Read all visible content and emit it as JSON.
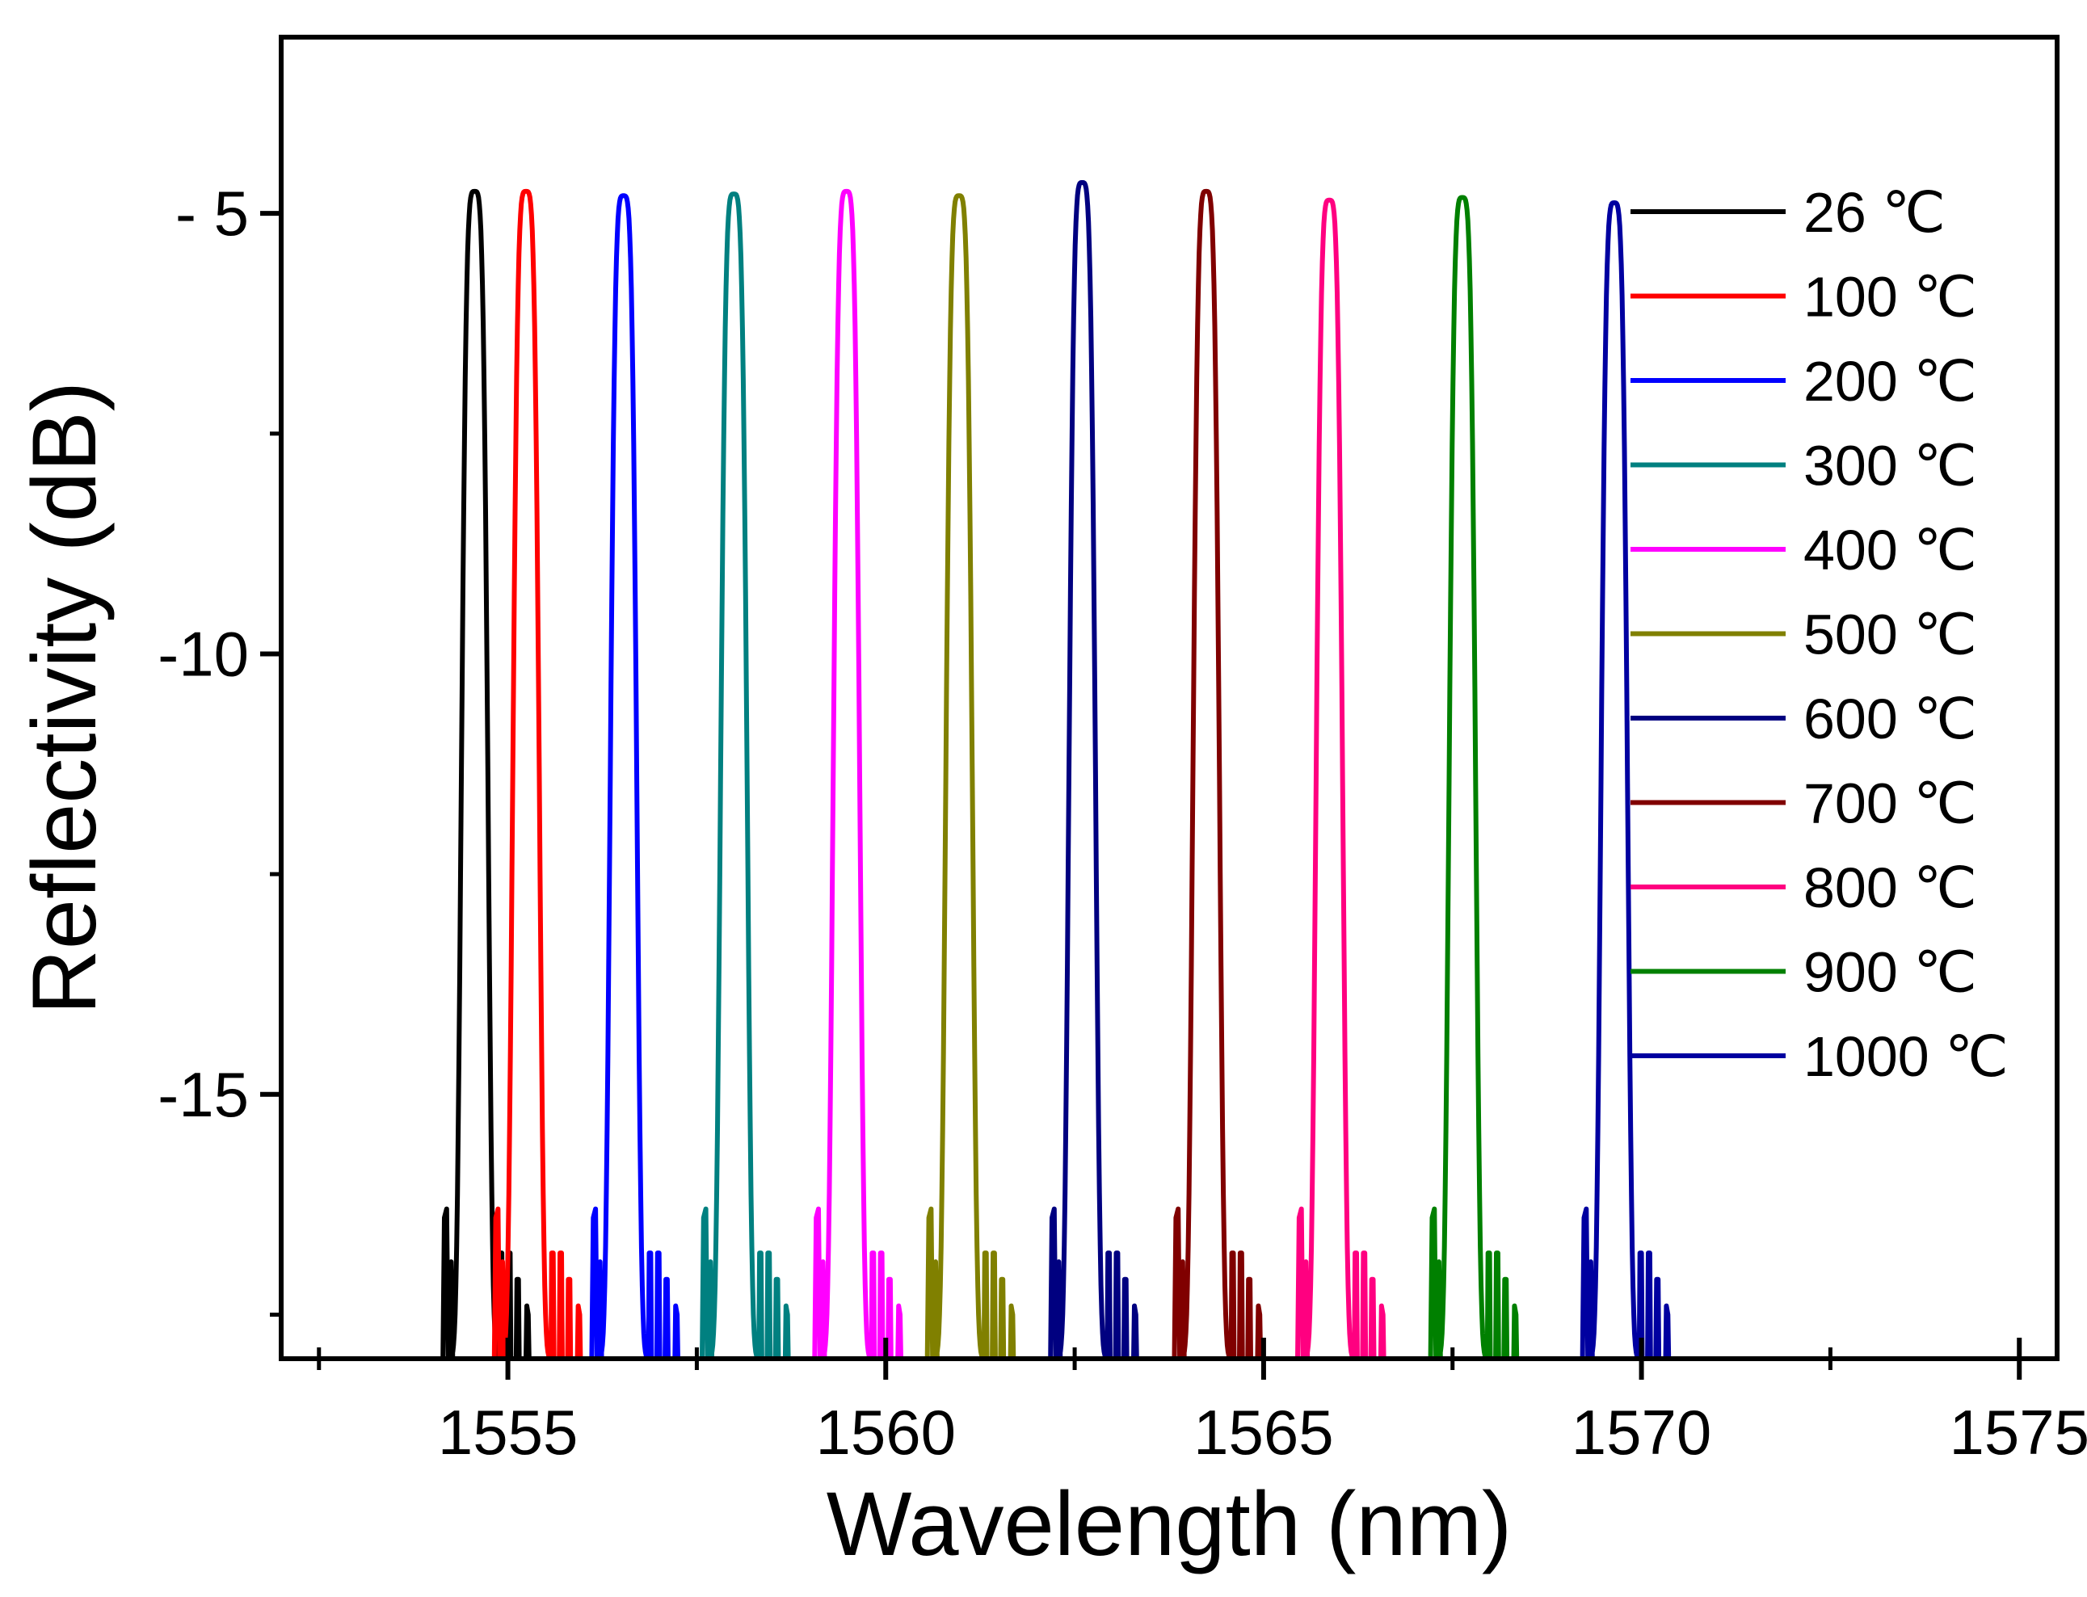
{
  "chart_data": {
    "type": "line",
    "title": "",
    "xlabel": "Wavelength (nm)",
    "ylabel": "Reflectivity (dB)",
    "xlim": [
      1552.0,
      1575.5
    ],
    "ylim": [
      -18,
      -3
    ],
    "xticks": [
      1555,
      1560,
      1565,
      1570,
      1575
    ],
    "xtick_labels": [
      "1555",
      "1560",
      "1565",
      "1570",
      "1575"
    ],
    "yticks": [
      -15,
      -10,
      -5
    ],
    "ytick_labels": [
      "-15",
      "-10",
      "- 5"
    ],
    "legend_position": "top-right",
    "grid": false,
    "series": [
      {
        "name": "26 ℃",
        "color": "#000000",
        "center": 1554.56,
        "peak": -4.75
      },
      {
        "name": "100 ℃",
        "color": "#ff0000",
        "center": 1555.24,
        "peak": -4.75
      },
      {
        "name": "200 ℃",
        "color": "#0000ff",
        "center": 1556.53,
        "peak": -4.8
      },
      {
        "name": "300 ℃",
        "color": "#008080",
        "center": 1557.99,
        "peak": -4.78
      },
      {
        "name": "400 ℃",
        "color": "#ff00ff",
        "center": 1559.48,
        "peak": -4.75
      },
      {
        "name": "500 ℃",
        "color": "#808000",
        "center": 1560.97,
        "peak": -4.8
      },
      {
        "name": "600 ℃",
        "color": "#000080",
        "center": 1562.6,
        "peak": -4.65
      },
      {
        "name": "700 ℃",
        "color": "#800000",
        "center": 1564.24,
        "peak": -4.75
      },
      {
        "name": "800 ℃",
        "color": "#ff0080",
        "center": 1565.87,
        "peak": -4.85
      },
      {
        "name": "900 ℃",
        "color": "#008000",
        "center": 1567.63,
        "peak": -4.82
      },
      {
        "name": "1000 ℃",
        "color": "#0000a0",
        "center": 1569.64,
        "peak": -4.88
      }
    ]
  }
}
